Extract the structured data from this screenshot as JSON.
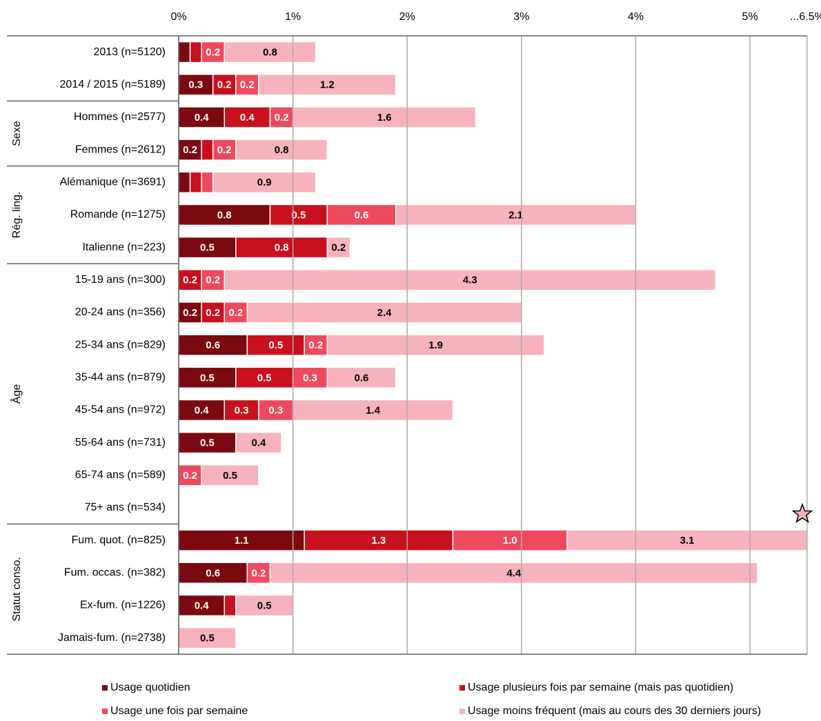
{
  "chart_data": {
    "type": "stacked-bar-horizontal",
    "groups": [
      {
        "label": null,
        "categories": [
          "2013 (n=5120)",
          "2014 / 2015 (n=5189)"
        ]
      },
      {
        "label": "Sexe",
        "categories": [
          "Hommes (n=2577)",
          "Femmes (n=2612)"
        ]
      },
      {
        "label": "Rég. ling.",
        "categories": [
          "Alémanique (n=3691)",
          "Romande (n=1275)",
          "Italienne (n=223)"
        ]
      },
      {
        "label": "Âge",
        "categories": [
          "15-19 ans (n=300)",
          "20-24 ans (n=356)",
          "25-34 ans (n=829)",
          "35-44 ans (n=879)",
          "45-54 ans (n=972)",
          "55-64 ans (n=731)",
          "65-74 ans (n=589)",
          "75+ ans (n=534)"
        ]
      },
      {
        "label": "Statut conso.",
        "categories": [
          "Fum. quot. (n=825)",
          "Fum. occas. (n=382)",
          "Ex-fum.  (n=1226)",
          "Jamais-fum. (n=2738)"
        ]
      }
    ],
    "series": [
      {
        "name": "Usage quotidien",
        "color": "#7a0a10",
        "values": [
          0.1,
          0.3,
          0.4,
          0.2,
          0.1,
          0.8,
          0.5,
          null,
          0.2,
          0.6,
          0.5,
          0.4,
          0.5,
          null,
          null,
          1.1,
          0.6,
          0.4,
          null
        ],
        "value_labels": [
          null,
          "0.3",
          "0.4",
          "0.2",
          null,
          "0.8",
          "0.5",
          null,
          "0.2",
          "0.6",
          "0.5",
          "0.4",
          "0.5",
          null,
          null,
          "1.1",
          "0.6",
          "0.4",
          null
        ]
      },
      {
        "name": "Usage plusieurs fois par semaine (mais pas quotidien)",
        "color": "#c8101e",
        "values": [
          0.1,
          0.2,
          0.4,
          0.1,
          0.1,
          0.5,
          0.8,
          0.2,
          0.2,
          0.5,
          0.5,
          0.3,
          null,
          null,
          null,
          1.3,
          null,
          0.1,
          null
        ],
        "value_labels": [
          null,
          "0.2",
          "0.4",
          null,
          null,
          "0.5",
          "0.8",
          "0.2",
          "0.2",
          "0.5",
          "0.5",
          "0.3",
          null,
          null,
          null,
          "1.3",
          null,
          null,
          null
        ]
      },
      {
        "name": "Usage une fois par semaine",
        "color": "#ee4a5e",
        "values": [
          0.2,
          0.2,
          0.2,
          0.2,
          0.1,
          0.6,
          null,
          0.2,
          0.2,
          0.2,
          0.3,
          0.3,
          null,
          0.2,
          null,
          1.0,
          0.2,
          null,
          null
        ],
        "value_labels": [
          "0.2",
          "0.2",
          "0.2",
          "0.2",
          null,
          "0.6",
          null,
          "0.2",
          "0.2",
          "0.2",
          "0.3",
          "0.3",
          null,
          "0.2",
          null,
          "1.0",
          "0.2",
          null,
          null
        ]
      },
      {
        "name": "Usage moins fréquent (mais au cours des 30 derniers jours)",
        "color": "#f7b3bb",
        "values": [
          0.8,
          1.2,
          1.6,
          0.8,
          0.9,
          2.1,
          0.2,
          4.3,
          2.4,
          1.9,
          0.6,
          1.4,
          0.4,
          0.5,
          null,
          3.1,
          4.4,
          0.5,
          0.5
        ],
        "value_labels": [
          "0.8",
          "1.2",
          "1.6",
          "0.8",
          "0.9",
          "2.1",
          "0.2",
          "4.3",
          "2.4",
          "1.9",
          "0.6",
          "1.4",
          "0.4",
          "0.5",
          null,
          "3.1",
          "4.4",
          "0.5",
          "0.5"
        ]
      }
    ],
    "xlim": [
      0,
      6.5
    ],
    "xticks": [
      {
        "value": 0,
        "label": "0%"
      },
      {
        "value": 1,
        "label": "1%"
      },
      {
        "value": 2,
        "label": "2%"
      },
      {
        "value": 3,
        "label": "3%"
      },
      {
        "value": 4,
        "label": "4%"
      },
      {
        "value": 5,
        "label": "5%"
      },
      {
        "value": 6.5,
        "label": "...6.5%"
      }
    ],
    "grid": true
  }
}
